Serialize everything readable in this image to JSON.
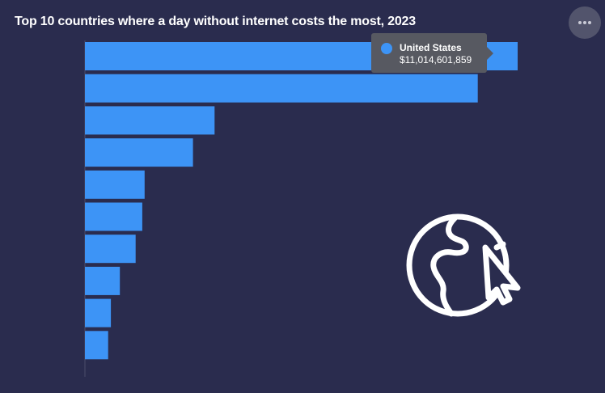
{
  "header": {
    "title": "Top 10 countries where a day without internet costs the most, 2023",
    "menu_icon": "more-horizontal-icon"
  },
  "colors": {
    "background": "#2a2c4e",
    "bar": "#3d94f6",
    "tooltip_bg": "#575961"
  },
  "tooltip": {
    "name": "United States",
    "value": "$11,014,601,859"
  },
  "decoration": {
    "icon": "globe-cursor-icon"
  },
  "chart_data": {
    "type": "bar",
    "orientation": "horizontal",
    "title": "Top 10 countries where a day without internet costs the most, 2023",
    "categories": [
      "United States",
      "",
      "",
      "",
      "",
      "",
      "",
      "",
      "",
      ""
    ],
    "values": [
      11014601859,
      10000000000,
      3300000000,
      2750000000,
      1520000000,
      1460000000,
      1290000000,
      890000000,
      660000000,
      590000000
    ],
    "xlim": [
      0,
      11014601859
    ],
    "xlabel": "",
    "ylabel": "",
    "grid": false,
    "value_labels": false
  }
}
